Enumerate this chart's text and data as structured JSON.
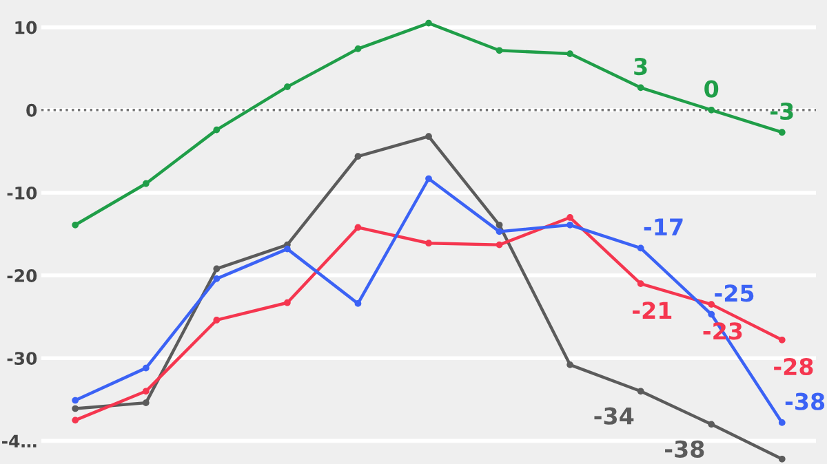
{
  "chart_data": {
    "type": "line",
    "categories": [
      null,
      null,
      null,
      null,
      null,
      null,
      null,
      null,
      null,
      null,
      null
    ],
    "series": [
      {
        "color": "#1f9e48",
        "values": [
          -13.9,
          -8.9,
          -2.4,
          2.8,
          7.4,
          10.5,
          7.2,
          6.8,
          2.7,
          0,
          -2.7
        ],
        "value_labels": [
          null,
          null,
          null,
          null,
          null,
          null,
          null,
          null,
          "3",
          "0",
          "-3"
        ]
      },
      {
        "color": "#5b5b5b",
        "values": [
          -36.1,
          -35.4,
          -19.2,
          -16.3,
          -5.6,
          -3.2,
          -13.9,
          -30.8,
          -34,
          -38,
          -42.2
        ],
        "value_labels": [
          null,
          null,
          null,
          null,
          null,
          null,
          null,
          null,
          "-34",
          "-38",
          null
        ]
      },
      {
        "color": "#f5364f",
        "values": [
          -37.5,
          -34,
          -25.4,
          -23.3,
          -14.2,
          -16.1,
          -16.3,
          -13,
          -21,
          -23.5,
          -27.8
        ],
        "value_labels": [
          null,
          null,
          null,
          null,
          null,
          null,
          null,
          null,
          "-21",
          "-23",
          "-28"
        ]
      },
      {
        "color": "#3b62f5",
        "values": [
          -35.1,
          -31.2,
          -20.4,
          -16.8,
          -23.4,
          -8.3,
          -14.7,
          -13.9,
          -16.7,
          -24.7,
          -37.8
        ],
        "value_labels": [
          null,
          null,
          null,
          null,
          null,
          null,
          null,
          null,
          "-17",
          "-25",
          "-38"
        ]
      }
    ],
    "ylim": [
      -42.8,
      13.3
    ],
    "yticks": [
      10,
      0,
      -10,
      -20,
      -30,
      {
        "value": -40,
        "label": "-4…"
      }
    ],
    "grid": "y",
    "marker": "circle",
    "line_style": "solid",
    "ref_lines": [
      {
        "axis": "y",
        "value": 0,
        "color": "#777777",
        "line_style": "dotted"
      }
    ],
    "legend": false
  }
}
